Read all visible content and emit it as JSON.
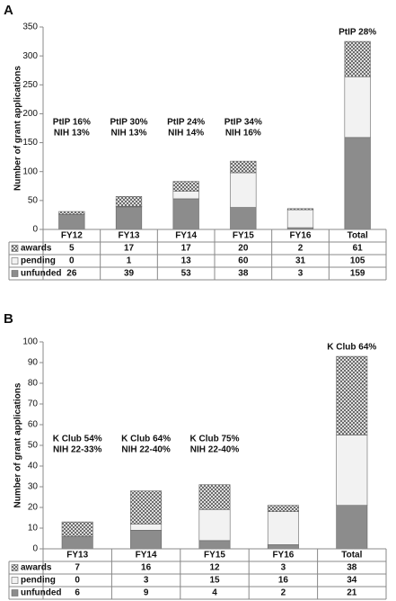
{
  "chart_data": [
    {
      "type": "bar",
      "stacked": true,
      "panel": "A",
      "y_label": "Number of grant applications",
      "categories": [
        "FY12",
        "FY13",
        "FY14",
        "FY15",
        "FY16",
        "Total"
      ],
      "series": [
        {
          "name": "awards",
          "color": "#555555",
          "pattern": "crosshatch",
          "values": [
            5,
            17,
            17,
            20,
            2,
            61
          ]
        },
        {
          "name": "pending",
          "color": "#f2f2f2",
          "values": [
            0,
            1,
            13,
            60,
            31,
            105
          ]
        },
        {
          "name": "unfunded",
          "color": "#8c8c8c",
          "values": [
            26,
            39,
            53,
            38,
            3,
            159
          ]
        }
      ],
      "annotations": [
        [
          "PtIP 16%",
          "NIH 13%"
        ],
        [
          "PtIP 30%",
          "NIH 13%"
        ],
        [
          "PtIP 24%",
          "NIH 14%"
        ],
        [
          "PtIP 34%",
          "NIH 16%"
        ],
        null,
        [
          "PtIP 28%"
        ]
      ],
      "ylim": [
        0,
        350
      ],
      "yticks": [
        0,
        50,
        100,
        150,
        200,
        250,
        300,
        350
      ]
    },
    {
      "type": "bar",
      "stacked": true,
      "panel": "B",
      "y_label": "Number of grant applications",
      "categories": [
        "FY13",
        "FY14",
        "FY15",
        "FY16",
        "Total"
      ],
      "series": [
        {
          "name": "awards",
          "color": "#555555",
          "pattern": "crosshatch",
          "values": [
            7,
            16,
            12,
            3,
            38
          ]
        },
        {
          "name": "pending",
          "color": "#f2f2f2",
          "values": [
            0,
            3,
            15,
            16,
            34
          ]
        },
        {
          "name": "unfunded",
          "color": "#8c8c8c",
          "values": [
            6,
            9,
            4,
            2,
            21
          ]
        }
      ],
      "annotations": [
        [
          "K Club 54%",
          "NIH 22-33%"
        ],
        [
          "K Club 64%",
          "NIH 22-40%"
        ],
        [
          "K Club 75%",
          "NIH 22-40%"
        ],
        null,
        [
          "K Club 64%"
        ]
      ],
      "ylim": [
        0,
        100
      ],
      "yticks": [
        0,
        10,
        20,
        30,
        40,
        50,
        60,
        70,
        80,
        90,
        100
      ]
    }
  ]
}
